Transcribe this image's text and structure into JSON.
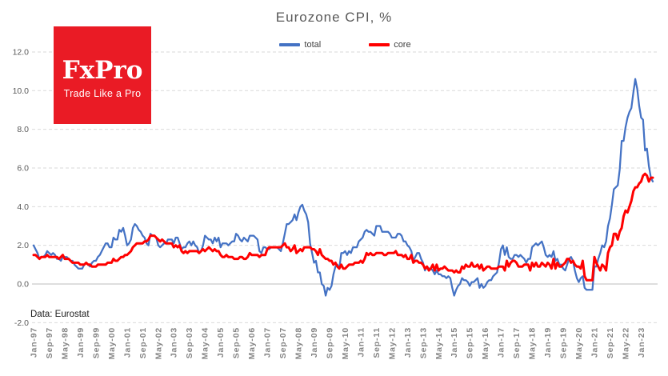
{
  "header": {
    "title": "Eurozone CPI, %"
  },
  "legend": [
    {
      "label": "total",
      "color": "#4472C4"
    },
    {
      "label": "core",
      "color": "#FF0000"
    }
  ],
  "logo": {
    "text": "FxPro",
    "tagline": "Trade Like a Pro",
    "bg_color": "#EA1B25",
    "text_color": "#ffffff"
  },
  "footnote": {
    "source": "Data: Eurostat"
  },
  "chart_data": {
    "type": "line",
    "title": "Eurozone CPI, %",
    "x_start": "Jan-1997",
    "x_end": "Jul-2023",
    "x_frequency": "monthly",
    "x_tick_labels": [
      "Jan-97",
      "Sep-97",
      "May-98",
      "Jan-99",
      "Sep-99",
      "May-00",
      "Jan-01",
      "Sep-01",
      "May-02",
      "Jan-03",
      "Sep-03",
      "May-04",
      "Jan-05",
      "Sep-05",
      "May-06",
      "Jan-07",
      "Sep-07",
      "May-08",
      "Jan-09",
      "Sep-09",
      "May-10",
      "Jan-11",
      "Sep-11",
      "May-12",
      "Jan-13",
      "Sep-13",
      "May-14",
      "Jan-15",
      "Sep-15",
      "May-16",
      "Jan-17",
      "Sep-17",
      "May-18",
      "Jan-19",
      "Sep-19",
      "May-20",
      "Jan-21",
      "Sep-21",
      "May-22",
      "Jan-23"
    ],
    "x_tick_every_n_months": 8,
    "y_ticks": [
      12,
      10,
      8,
      6,
      4,
      2,
      0,
      -2
    ],
    "y_tick_labels": [
      "12.0",
      "10.0",
      "8.0",
      "6.0",
      "4.0",
      "2.0",
      "0.0",
      "-2.0"
    ],
    "ylim": [
      -2,
      12.6
    ],
    "grid": "horizontal-dashed",
    "zero_line": true,
    "legend_position": "top",
    "series": [
      {
        "name": "total",
        "color": "#4472C4",
        "width": 2.25,
        "values": [
          2.0,
          1.8,
          1.6,
          1.3,
          1.4,
          1.4,
          1.5,
          1.7,
          1.6,
          1.5,
          1.6,
          1.5,
          1.3,
          1.3,
          1.2,
          1.4,
          1.4,
          1.4,
          1.3,
          1.2,
          1.2,
          1.0,
          0.9,
          0.8,
          0.8,
          0.8,
          1.0,
          1.1,
          1.0,
          0.9,
          1.1,
          1.2,
          1.2,
          1.4,
          1.5,
          1.7,
          1.9,
          2.1,
          2.1,
          1.9,
          1.9,
          2.4,
          2.3,
          2.3,
          2.8,
          2.7,
          2.9,
          2.5,
          2.0,
          2.1,
          2.3,
          2.9,
          3.1,
          3.0,
          2.8,
          2.7,
          2.5,
          2.4,
          2.1,
          2.0,
          2.6,
          2.5,
          2.5,
          2.4,
          2.0,
          1.9,
          2.0,
          2.1,
          2.1,
          2.3,
          2.3,
          2.3,
          2.1,
          2.4,
          2.4,
          2.1,
          1.8,
          1.9,
          1.9,
          2.1,
          2.2,
          2.0,
          2.2,
          2.0,
          1.9,
          1.6,
          1.7,
          2.0,
          2.5,
          2.4,
          2.3,
          2.3,
          2.1,
          2.4,
          2.2,
          2.4,
          1.9,
          2.1,
          2.1,
          2.1,
          2.0,
          2.1,
          2.2,
          2.2,
          2.6,
          2.5,
          2.3,
          2.2,
          2.4,
          2.3,
          2.2,
          2.5,
          2.5,
          2.5,
          2.4,
          2.3,
          1.7,
          1.6,
          1.9,
          1.9,
          1.8,
          1.8,
          1.9,
          1.9,
          1.9,
          1.9,
          1.8,
          1.7,
          2.1,
          2.6,
          3.1,
          3.1,
          3.2,
          3.3,
          3.6,
          3.3,
          3.7,
          4.0,
          4.1,
          3.8,
          3.6,
          3.2,
          2.1,
          1.6,
          1.1,
          1.2,
          0.6,
          0.6,
          0.0,
          -0.1,
          -0.6,
          -0.2,
          -0.3,
          -0.1,
          0.5,
          0.9,
          1.0,
          0.8,
          1.6,
          1.6,
          1.7,
          1.5,
          1.7,
          1.6,
          1.9,
          1.9,
          1.9,
          2.2,
          2.3,
          2.4,
          2.7,
          2.8,
          2.7,
          2.7,
          2.6,
          2.5,
          3.0,
          3.0,
          3.0,
          2.7,
          2.7,
          2.7,
          2.7,
          2.6,
          2.4,
          2.4,
          2.4,
          2.6,
          2.6,
          2.5,
          2.2,
          2.2,
          2.0,
          1.9,
          1.7,
          1.2,
          1.4,
          1.6,
          1.6,
          1.3,
          1.1,
          0.7,
          0.9,
          0.8,
          0.8,
          0.7,
          0.5,
          0.7,
          0.5,
          0.5,
          0.4,
          0.4,
          0.3,
          0.4,
          0.3,
          -0.2,
          -0.6,
          -0.3,
          -0.1,
          0.0,
          0.3,
          0.2,
          0.2,
          0.1,
          -0.1,
          0.1,
          0.1,
          0.2,
          0.3,
          -0.2,
          0.0,
          -0.2,
          -0.1,
          0.1,
          0.2,
          0.2,
          0.4,
          0.5,
          0.6,
          1.1,
          1.8,
          2.0,
          1.5,
          1.9,
          1.4,
          1.3,
          1.3,
          1.5,
          1.5,
          1.4,
          1.5,
          1.4,
          1.3,
          1.1,
          1.3,
          1.3,
          1.9,
          2.0,
          2.1,
          2.0,
          2.1,
          2.2,
          1.9,
          1.5,
          1.4,
          1.5,
          1.4,
          1.7,
          1.2,
          1.3,
          1.0,
          1.0,
          0.8,
          0.7,
          1.0,
          1.3,
          1.4,
          1.2,
          0.7,
          0.3,
          0.1,
          0.3,
          0.4,
          -0.2,
          -0.3,
          -0.3,
          -0.3,
          -0.3,
          0.9,
          0.9,
          1.3,
          1.6,
          2.0,
          1.9,
          2.2,
          3.0,
          3.4,
          4.1,
          4.9,
          5.0,
          5.1,
          5.9,
          7.4,
          7.4,
          8.1,
          8.6,
          8.9,
          9.1,
          9.9,
          10.6,
          10.1,
          9.2,
          8.6,
          8.5,
          6.9,
          7.0,
          6.1,
          5.5,
          5.3
        ]
      },
      {
        "name": "core",
        "color": "#FF0000",
        "width": 3,
        "values": [
          1.5,
          1.5,
          1.4,
          1.3,
          1.4,
          1.4,
          1.4,
          1.5,
          1.4,
          1.4,
          1.4,
          1.4,
          1.4,
          1.3,
          1.4,
          1.5,
          1.3,
          1.3,
          1.3,
          1.2,
          1.1,
          1.1,
          1.1,
          1.1,
          1.0,
          1.0,
          1.0,
          1.1,
          1.0,
          1.0,
          0.9,
          0.9,
          0.9,
          1.0,
          1.0,
          1.0,
          1.0,
          1.0,
          1.1,
          1.1,
          1.1,
          1.3,
          1.2,
          1.2,
          1.3,
          1.4,
          1.4,
          1.5,
          1.5,
          1.6,
          1.7,
          1.9,
          2.0,
          2.1,
          2.1,
          2.1,
          2.1,
          2.2,
          2.2,
          2.3,
          2.5,
          2.5,
          2.5,
          2.4,
          2.3,
          2.2,
          2.3,
          2.2,
          2.1,
          2.1,
          2.1,
          2.1,
          1.9,
          2.0,
          1.9,
          2.0,
          1.7,
          1.6,
          1.7,
          1.6,
          1.7,
          1.7,
          1.7,
          1.7,
          1.7,
          1.6,
          1.7,
          1.8,
          1.7,
          1.8,
          1.9,
          1.8,
          1.7,
          1.8,
          1.7,
          1.7,
          1.5,
          1.4,
          1.4,
          1.5,
          1.4,
          1.4,
          1.4,
          1.3,
          1.3,
          1.3,
          1.4,
          1.4,
          1.3,
          1.3,
          1.4,
          1.6,
          1.5,
          1.5,
          1.5,
          1.5,
          1.4,
          1.5,
          1.5,
          1.5,
          1.8,
          1.9,
          1.9,
          1.9,
          1.9,
          1.9,
          1.9,
          1.9,
          2.0,
          2.1,
          1.9,
          1.9,
          1.7,
          1.8,
          2.0,
          1.6,
          1.7,
          1.8,
          1.7,
          1.9,
          1.9,
          1.9,
          1.9,
          1.8,
          1.8,
          1.7,
          1.5,
          1.8,
          1.5,
          1.4,
          1.3,
          1.3,
          1.2,
          1.2,
          1.0,
          1.1,
          0.9,
          0.8,
          1.0,
          0.8,
          0.8,
          0.9,
          1.0,
          1.0,
          1.0,
          1.1,
          1.1,
          1.1,
          1.2,
          1.1,
          1.3,
          1.6,
          1.5,
          1.6,
          1.5,
          1.5,
          1.6,
          1.6,
          1.6,
          1.6,
          1.5,
          1.5,
          1.6,
          1.6,
          1.6,
          1.6,
          1.7,
          1.5,
          1.5,
          1.5,
          1.4,
          1.5,
          1.3,
          1.3,
          1.5,
          1.1,
          1.2,
          1.2,
          1.1,
          1.1,
          1.0,
          0.8,
          0.9,
          0.7,
          0.8,
          1.0,
          0.7,
          1.0,
          0.7,
          0.8,
          0.8,
          0.9,
          0.8,
          0.7,
          0.7,
          0.7,
          0.6,
          0.7,
          0.6,
          0.6,
          0.9,
          0.8,
          1.0,
          0.9,
          0.9,
          1.1,
          0.9,
          0.9,
          1.0,
          0.8,
          1.0,
          0.7,
          0.8,
          0.9,
          0.9,
          0.8,
          0.8,
          0.8,
          0.8,
          0.9,
          0.9,
          0.9,
          0.7,
          1.2,
          0.9,
          1.1,
          1.2,
          1.2,
          1.1,
          0.9,
          0.9,
          0.9,
          1.0,
          1.0,
          1.0,
          0.7,
          1.1,
          0.9,
          1.1,
          0.9,
          0.9,
          1.1,
          1.0,
          0.9,
          1.1,
          1.0,
          0.8,
          1.3,
          0.8,
          1.1,
          0.9,
          0.9,
          1.0,
          1.1,
          1.3,
          1.3,
          1.1,
          1.2,
          1.0,
          0.9,
          0.9,
          0.8,
          1.2,
          0.4,
          0.2,
          0.2,
          0.2,
          0.2,
          1.4,
          1.1,
          0.9,
          0.7,
          1.0,
          0.9,
          0.7,
          1.6,
          1.9,
          2.0,
          2.6,
          2.6,
          2.3,
          2.7,
          2.9,
          3.5,
          3.8,
          3.7,
          4.0,
          4.3,
          4.8,
          5.0,
          5.0,
          5.2,
          5.3,
          5.6,
          5.7,
          5.6,
          5.3,
          5.5,
          5.5
        ]
      }
    ]
  }
}
